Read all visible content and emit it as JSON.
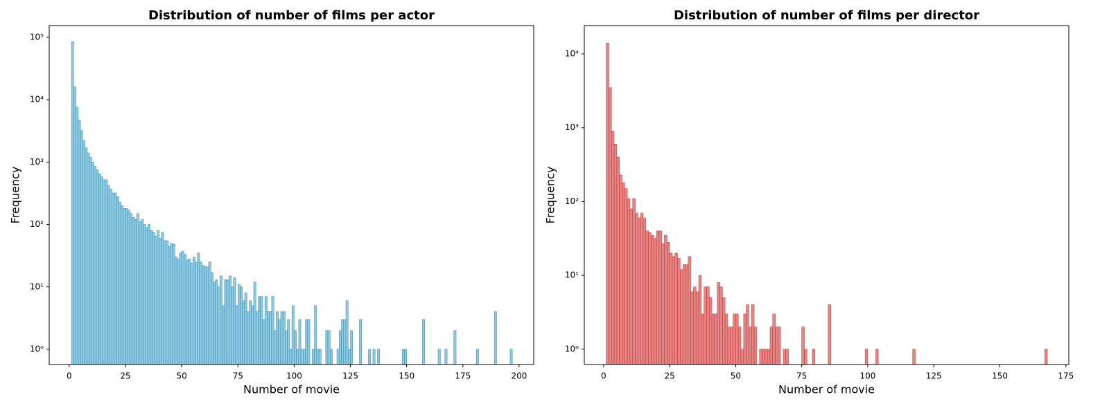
{
  "chart_data": [
    {
      "type": "histogram",
      "title": "Distribution of number of films per actor",
      "xlabel": "Number of movie",
      "ylabel": "Frequency",
      "color": "#87ceeb",
      "edgecolor": "#4a6f80",
      "log_y": true,
      "xlim": [
        -8.9,
        206.5
      ],
      "ylim": [
        0.57,
        154000
      ],
      "xticks": [
        0,
        25,
        50,
        75,
        100,
        125,
        150,
        175,
        200
      ],
      "yticks": [
        {
          "value": 1,
          "label": "10⁰"
        },
        {
          "value": 10,
          "label": "10¹"
        },
        {
          "value": 100,
          "label": "10²"
        },
        {
          "value": 1000,
          "label": "10³"
        },
        {
          "value": 10000,
          "label": "10⁴"
        },
        {
          "value": 100000,
          "label": "10⁵"
        }
      ],
      "bins": [
        1,
        2,
        3,
        4,
        5,
        6,
        7,
        8,
        9,
        10,
        11,
        12,
        13,
        14,
        15,
        16,
        17,
        18,
        19,
        20,
        21,
        22,
        23,
        24,
        25,
        26,
        27,
        28,
        29,
        30,
        31,
        32,
        33,
        34,
        35,
        36,
        37,
        38,
        39,
        40,
        41,
        42,
        43,
        44,
        45,
        46,
        47,
        48,
        49,
        50,
        51,
        52,
        53,
        54,
        55,
        56,
        57,
        58,
        59,
        60,
        61,
        62,
        63,
        64,
        65,
        66,
        67,
        68,
        69,
        70,
        71,
        72,
        73,
        74,
        75,
        76,
        77,
        78,
        79,
        80,
        81,
        82,
        83,
        84,
        85,
        86,
        87,
        88,
        89,
        90,
        91,
        92,
        93,
        94,
        95,
        96,
        97,
        98,
        99,
        100,
        101,
        102,
        103,
        104,
        105,
        106,
        107,
        108,
        109,
        110,
        111,
        112,
        113,
        114,
        115,
        116,
        117,
        118,
        119,
        120,
        121,
        122,
        123,
        124,
        125,
        126,
        127,
        128,
        129,
        130,
        131,
        132,
        133,
        134,
        135,
        136,
        137,
        138,
        139,
        140,
        141,
        142,
        143,
        144,
        145,
        146,
        147,
        148,
        149,
        150,
        151,
        152,
        153,
        154,
        155,
        156,
        157,
        158,
        159,
        160,
        161,
        162,
        163,
        164,
        165,
        166,
        167,
        168,
        169,
        170,
        171,
        172,
        173,
        174,
        175,
        176,
        177,
        178,
        179,
        180,
        181,
        182,
        183,
        184,
        185,
        186,
        187,
        188,
        189,
        190,
        191,
        192,
        193,
        194,
        195,
        196,
        197,
        198,
        199
      ],
      "counts": [
        85000,
        16000,
        7500,
        4700,
        3200,
        2200,
        1700,
        1400,
        1200,
        1000,
        850,
        750,
        650,
        580,
        520,
        520,
        420,
        370,
        320,
        320,
        280,
        230,
        200,
        180,
        180,
        170,
        150,
        130,
        120,
        150,
        110,
        120,
        100,
        90,
        100,
        80,
        75,
        65,
        80,
        60,
        75,
        55,
        55,
        45,
        50,
        48,
        30,
        28,
        35,
        37,
        33,
        27,
        28,
        24,
        30,
        25,
        35,
        25,
        22,
        21,
        21,
        25,
        17,
        12,
        13,
        10,
        15,
        5,
        13,
        13,
        15,
        10,
        14,
        5,
        11,
        10,
        6,
        8,
        4,
        6,
        5,
        12,
        4,
        7,
        7,
        3,
        7,
        4,
        4,
        7,
        2,
        4,
        3,
        4,
        4,
        2,
        3,
        1,
        5,
        2,
        1,
        3,
        1,
        1,
        3,
        3,
        0,
        1,
        5,
        1,
        1,
        0,
        0,
        2,
        2,
        1,
        0,
        0,
        1,
        2,
        3,
        3,
        6,
        1,
        2,
        0,
        0,
        0,
        3,
        0,
        0,
        0,
        1,
        0,
        1,
        0,
        1,
        0,
        0,
        0,
        0,
        0,
        0,
        0,
        0,
        0,
        0,
        1,
        1,
        0,
        0,
        0,
        0,
        0,
        0,
        0,
        3,
        0,
        0,
        0,
        0,
        0,
        0,
        1,
        0,
        0,
        1,
        0,
        0,
        0,
        2,
        0,
        0,
        0,
        0,
        0,
        0,
        0,
        0,
        0,
        1,
        0,
        0,
        0,
        0,
        0,
        0,
        0,
        4,
        0,
        0,
        0,
        0,
        0,
        0,
        1,
        0,
        0
      ]
    },
    {
      "type": "histogram",
      "title": "Distribution of number of films per director",
      "xlabel": "Number of movie",
      "ylabel": "Frequency",
      "color": "#f08080",
      "edgecolor": "#804545",
      "log_y": true,
      "xlim": [
        -7.3,
        176.1
      ],
      "ylim": [
        0.62,
        24200
      ],
      "xticks": [
        0,
        25,
        50,
        75,
        100,
        125,
        150,
        175
      ],
      "yticks": [
        {
          "value": 1,
          "label": "10⁰"
        },
        {
          "value": 10,
          "label": "10¹"
        },
        {
          "value": 100,
          "label": "10²"
        },
        {
          "value": 1000,
          "label": "10³"
        },
        {
          "value": 10000,
          "label": "10⁴"
        }
      ],
      "bins": [
        1,
        2,
        3,
        4,
        5,
        6,
        7,
        8,
        9,
        10,
        11,
        12,
        13,
        14,
        15,
        16,
        17,
        18,
        19,
        20,
        21,
        22,
        23,
        24,
        25,
        26,
        27,
        28,
        29,
        30,
        31,
        32,
        33,
        34,
        35,
        36,
        37,
        38,
        39,
        40,
        41,
        42,
        43,
        44,
        45,
        46,
        47,
        48,
        49,
        50,
        51,
        52,
        53,
        54,
        55,
        56,
        57,
        58,
        59,
        60,
        61,
        62,
        63,
        64,
        65,
        66,
        67,
        68,
        69,
        70,
        71,
        72,
        73,
        74,
        75,
        76,
        77,
        78,
        79,
        80,
        81,
        82,
        83,
        84,
        85,
        86,
        87,
        88,
        89,
        90,
        91,
        92,
        93,
        94,
        95,
        96,
        97,
        98,
        99,
        100,
        101,
        102,
        103,
        104,
        105,
        106,
        107,
        108,
        109,
        110,
        111,
        112,
        113,
        114,
        115,
        116,
        117,
        118,
        119,
        120,
        121,
        122,
        123,
        124,
        125,
        126,
        127,
        128,
        129,
        130,
        131,
        132,
        133,
        134,
        135,
        136,
        137,
        138,
        139,
        140,
        141,
        142,
        143,
        144,
        145,
        146,
        147,
        148,
        149,
        150,
        151,
        152,
        153,
        154,
        155,
        156,
        157,
        158,
        159,
        160,
        161,
        162,
        163,
        164,
        165,
        166,
        167,
        168
      ],
      "counts": [
        14000,
        3500,
        900,
        600,
        400,
        230,
        180,
        150,
        110,
        80,
        110,
        70,
        60,
        70,
        60,
        40,
        38,
        35,
        32,
        40,
        40,
        27,
        35,
        28,
        20,
        18,
        20,
        17,
        12,
        14,
        14,
        18,
        6,
        7,
        6,
        10,
        3,
        7,
        7,
        5,
        3,
        3,
        8,
        7,
        5,
        3,
        2,
        2,
        3,
        3,
        2,
        1,
        3,
        4,
        2,
        4,
        2,
        0,
        1,
        1,
        1,
        1,
        2,
        3,
        2,
        2,
        0,
        1,
        1,
        0,
        0,
        0,
        0,
        0,
        2,
        1,
        0,
        0,
        1,
        0,
        0,
        0,
        0,
        0,
        4,
        0,
        0,
        0,
        0,
        0,
        0,
        0,
        0,
        0,
        0,
        0,
        0,
        0,
        1,
        0,
        0,
        0,
        1,
        0,
        0,
        0,
        0,
        0,
        0,
        0,
        0,
        0,
        0,
        0,
        0,
        0,
        1,
        0,
        0,
        0,
        0,
        0,
        0,
        0,
        0,
        0,
        0,
        0,
        0,
        0,
        0,
        0,
        0,
        0,
        0,
        0,
        0,
        0,
        0,
        0,
        0,
        0,
        0,
        0,
        0,
        0,
        0,
        0,
        0,
        0,
        0,
        0,
        0,
        0,
        0,
        0,
        0,
        0,
        0,
        0,
        0,
        0,
        0,
        0,
        0,
        0,
        1
      ]
    }
  ]
}
